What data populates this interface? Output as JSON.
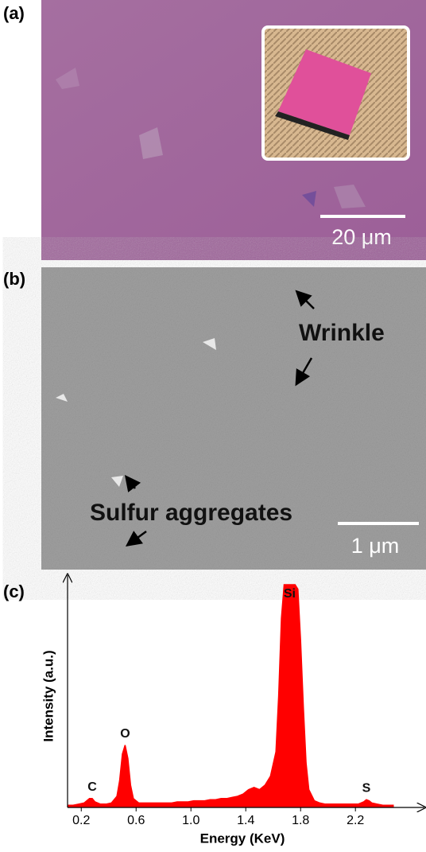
{
  "panel_a": {
    "label": "(a)",
    "scale_bar": "20 μm"
  },
  "panel_b": {
    "label": "(b)",
    "annotations": [
      "Wrinkle",
      "Sulfur aggregates"
    ],
    "scale_bar": "1 μm"
  },
  "chart_data": {
    "type": "area",
    "panel_label": "(c)",
    "x_label": "Energy (KeV)",
    "y_label": "Intensity (a.u.)",
    "color": "#ff0000",
    "x": [
      0.1,
      0.14,
      0.18,
      0.22,
      0.26,
      0.28,
      0.3,
      0.34,
      0.38,
      0.42,
      0.46,
      0.48,
      0.5,
      0.52,
      0.54,
      0.56,
      0.58,
      0.62,
      0.66,
      0.7,
      0.74,
      0.78,
      0.82,
      0.86,
      0.9,
      0.94,
      0.98,
      1.02,
      1.06,
      1.1,
      1.14,
      1.18,
      1.22,
      1.26,
      1.3,
      1.34,
      1.38,
      1.42,
      1.46,
      1.5,
      1.54,
      1.58,
      1.62,
      1.64,
      1.66,
      1.68,
      1.7,
      1.72,
      1.74,
      1.76,
      1.78,
      1.8,
      1.82,
      1.84,
      1.86,
      1.9,
      1.94,
      1.98,
      2.02,
      2.06,
      2.1,
      2.14,
      2.18,
      2.22,
      2.26,
      2.28,
      2.3,
      2.32,
      2.36,
      2.4,
      2.44,
      2.48
    ],
    "values": [
      1,
      1,
      1.5,
      2,
      4,
      4,
      2.5,
      1.5,
      1.5,
      2,
      5,
      12,
      24,
      28,
      22,
      10,
      4,
      2,
      2,
      2,
      2,
      2,
      2,
      2,
      2.5,
      2.5,
      2.5,
      3,
      3,
      3,
      3.5,
      3.5,
      4,
      4,
      4.5,
      5,
      6,
      8,
      9,
      8,
      10,
      14,
      25,
      50,
      85,
      100,
      100,
      100,
      100,
      100,
      98,
      75,
      45,
      20,
      8,
      3,
      2,
      1.5,
      1.5,
      1.5,
      1.5,
      1.5,
      1.5,
      1.5,
      2.5,
      3.5,
      3,
      2,
      1.5,
      1,
      1,
      1
    ],
    "xlim": [
      0.1,
      2.68
    ],
    "ylim": [
      0,
      100
    ],
    "xticks": [
      0.2,
      0.6,
      {
        "value": 1,
        "label": "1.0"
      },
      1.4,
      1.8,
      2.2
    ],
    "annotations": [
      {
        "text": "C",
        "x": 0.28
      },
      {
        "text": "O",
        "x": 0.52
      },
      {
        "text": "Si",
        "x": 1.72
      },
      {
        "text": "S",
        "x": 2.28
      }
    ]
  }
}
